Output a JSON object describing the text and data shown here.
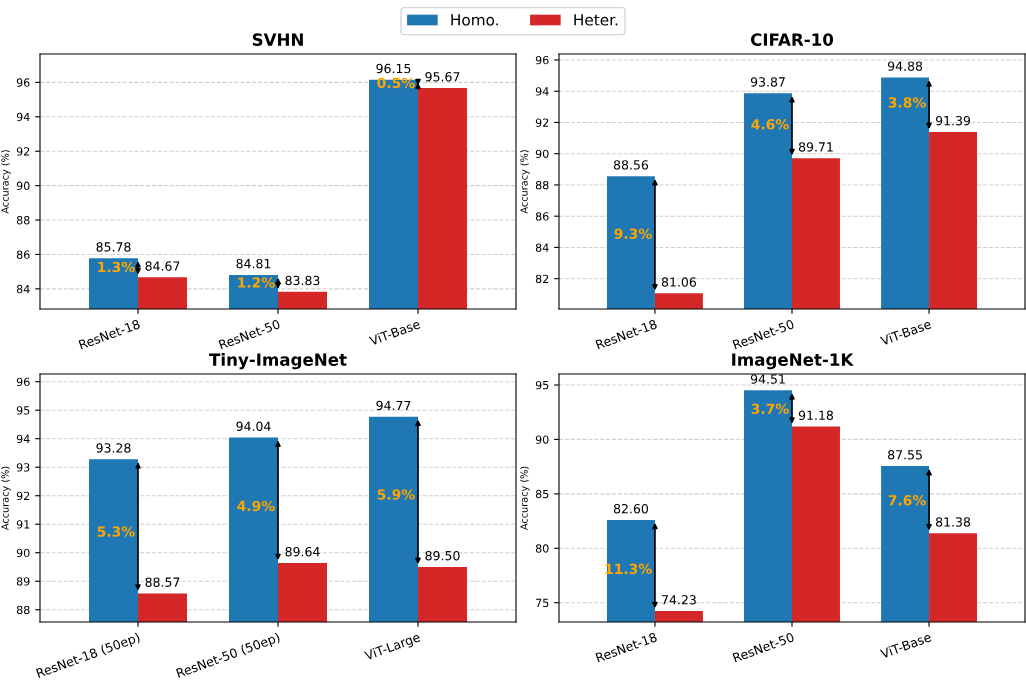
{
  "chart_data": [
    {
      "type": "bar",
      "title": "SVHN",
      "ylabel": "Accuracy (%)",
      "categories": [
        "ResNet-18",
        "ResNet-50",
        "ViT-Base"
      ],
      "series": [
        {
          "name": "Homo.",
          "color": "#1f77b4",
          "values": [
            85.78,
            84.81,
            96.15
          ],
          "value_labels": [
            "85.78",
            "84.81",
            "96.15"
          ]
        },
        {
          "name": "Heter.",
          "color": "#d62728",
          "values": [
            84.67,
            83.83,
            95.67
          ],
          "value_labels": [
            "84.67",
            "83.83",
            "95.67"
          ]
        }
      ],
      "ylim": [
        82.83,
        97.65
      ],
      "yticks": [
        84,
        86,
        88,
        90,
        92,
        94,
        96
      ],
      "grid": "y",
      "legend": "top",
      "annotations": [
        {
          "text": "1.3%",
          "x": "ResNet-18",
          "y": 85.2
        },
        {
          "text": "1.2%",
          "x": "ResNet-50",
          "y": 84.3
        },
        {
          "text": "0.5%",
          "x": "ViT-Base",
          "y": 95.9
        }
      ]
    },
    {
      "type": "bar",
      "title": "CIFAR-10",
      "ylabel": "Accuracy (%)",
      "categories": [
        "ResNet-18",
        "ResNet-50",
        "ViT-Base"
      ],
      "series": [
        {
          "color": "#1f77b4",
          "values": [
            88.56,
            93.87,
            94.88
          ],
          "value_labels": [
            "88.56",
            "93.87",
            "94.88"
          ]
        },
        {
          "color": "#d62728",
          "values": [
            81.06,
            89.71,
            91.39
          ],
          "value_labels": [
            "81.06",
            "89.71",
            "91.39"
          ]
        }
      ],
      "ylim": [
        80.06,
        96.38
      ],
      "yticks": [
        82,
        84,
        86,
        88,
        90,
        92,
        94,
        96
      ],
      "grid": "y",
      "annotations": [
        {
          "text": "9.3%",
          "x": "ResNet-18",
          "y": 84.8
        },
        {
          "text": "4.6%",
          "x": "ResNet-50",
          "y": 91.8
        },
        {
          "text": "3.8%",
          "x": "ViT-Base",
          "y": 93.2
        }
      ]
    },
    {
      "type": "bar",
      "title": "Tiny-ImageNet",
      "ylabel": "Accuracy (%)",
      "categories": [
        "ResNet-18 (50ep)",
        "ResNet-50 (50ep)",
        "ViT-Large"
      ],
      "series": [
        {
          "color": "#1f77b4",
          "values": [
            93.28,
            94.04,
            94.77
          ],
          "value_labels": [
            "93.28",
            "94.04",
            "94.77"
          ]
        },
        {
          "color": "#d62728",
          "values": [
            88.57,
            89.64,
            89.5
          ],
          "value_labels": [
            "88.57",
            "89.64",
            "89.50"
          ]
        }
      ],
      "ylim": [
        87.57,
        96.27
      ],
      "yticks": [
        88,
        89,
        90,
        91,
        92,
        93,
        94,
        95,
        96
      ],
      "grid": "y",
      "annotations": [
        {
          "text": "5.3%",
          "x": "ResNet-18 (50ep)",
          "y": 90.7
        },
        {
          "text": "4.9%",
          "x": "ResNet-50 (50ep)",
          "y": 91.6
        },
        {
          "text": "5.9%",
          "x": "ViT-Large",
          "y": 92.0
        }
      ]
    },
    {
      "type": "bar",
      "title": "ImageNet-1K",
      "ylabel": "Accuracy (%)",
      "categories": [
        "ResNet-18",
        "ResNet-50",
        "ViT-Base"
      ],
      "series": [
        {
          "color": "#1f77b4",
          "values": [
            82.6,
            94.51,
            87.55
          ],
          "value_labels": [
            "82.60",
            "94.51",
            "87.55"
          ]
        },
        {
          "color": "#d62728",
          "values": [
            74.23,
            91.18,
            81.38
          ],
          "value_labels": [
            "74.23",
            "91.18",
            "81.38"
          ]
        }
      ],
      "ylim": [
        73.23,
        96.01
      ],
      "yticks": [
        75,
        80,
        85,
        90,
        95
      ],
      "grid": "y",
      "annotations": [
        {
          "text": "11.3%",
          "x": "ResNet-18",
          "y": 78.0
        },
        {
          "text": "3.7%",
          "x": "ResNet-50",
          "y": 92.7
        },
        {
          "text": "7.6%",
          "x": "ViT-Base",
          "y": 84.3
        }
      ]
    }
  ]
}
